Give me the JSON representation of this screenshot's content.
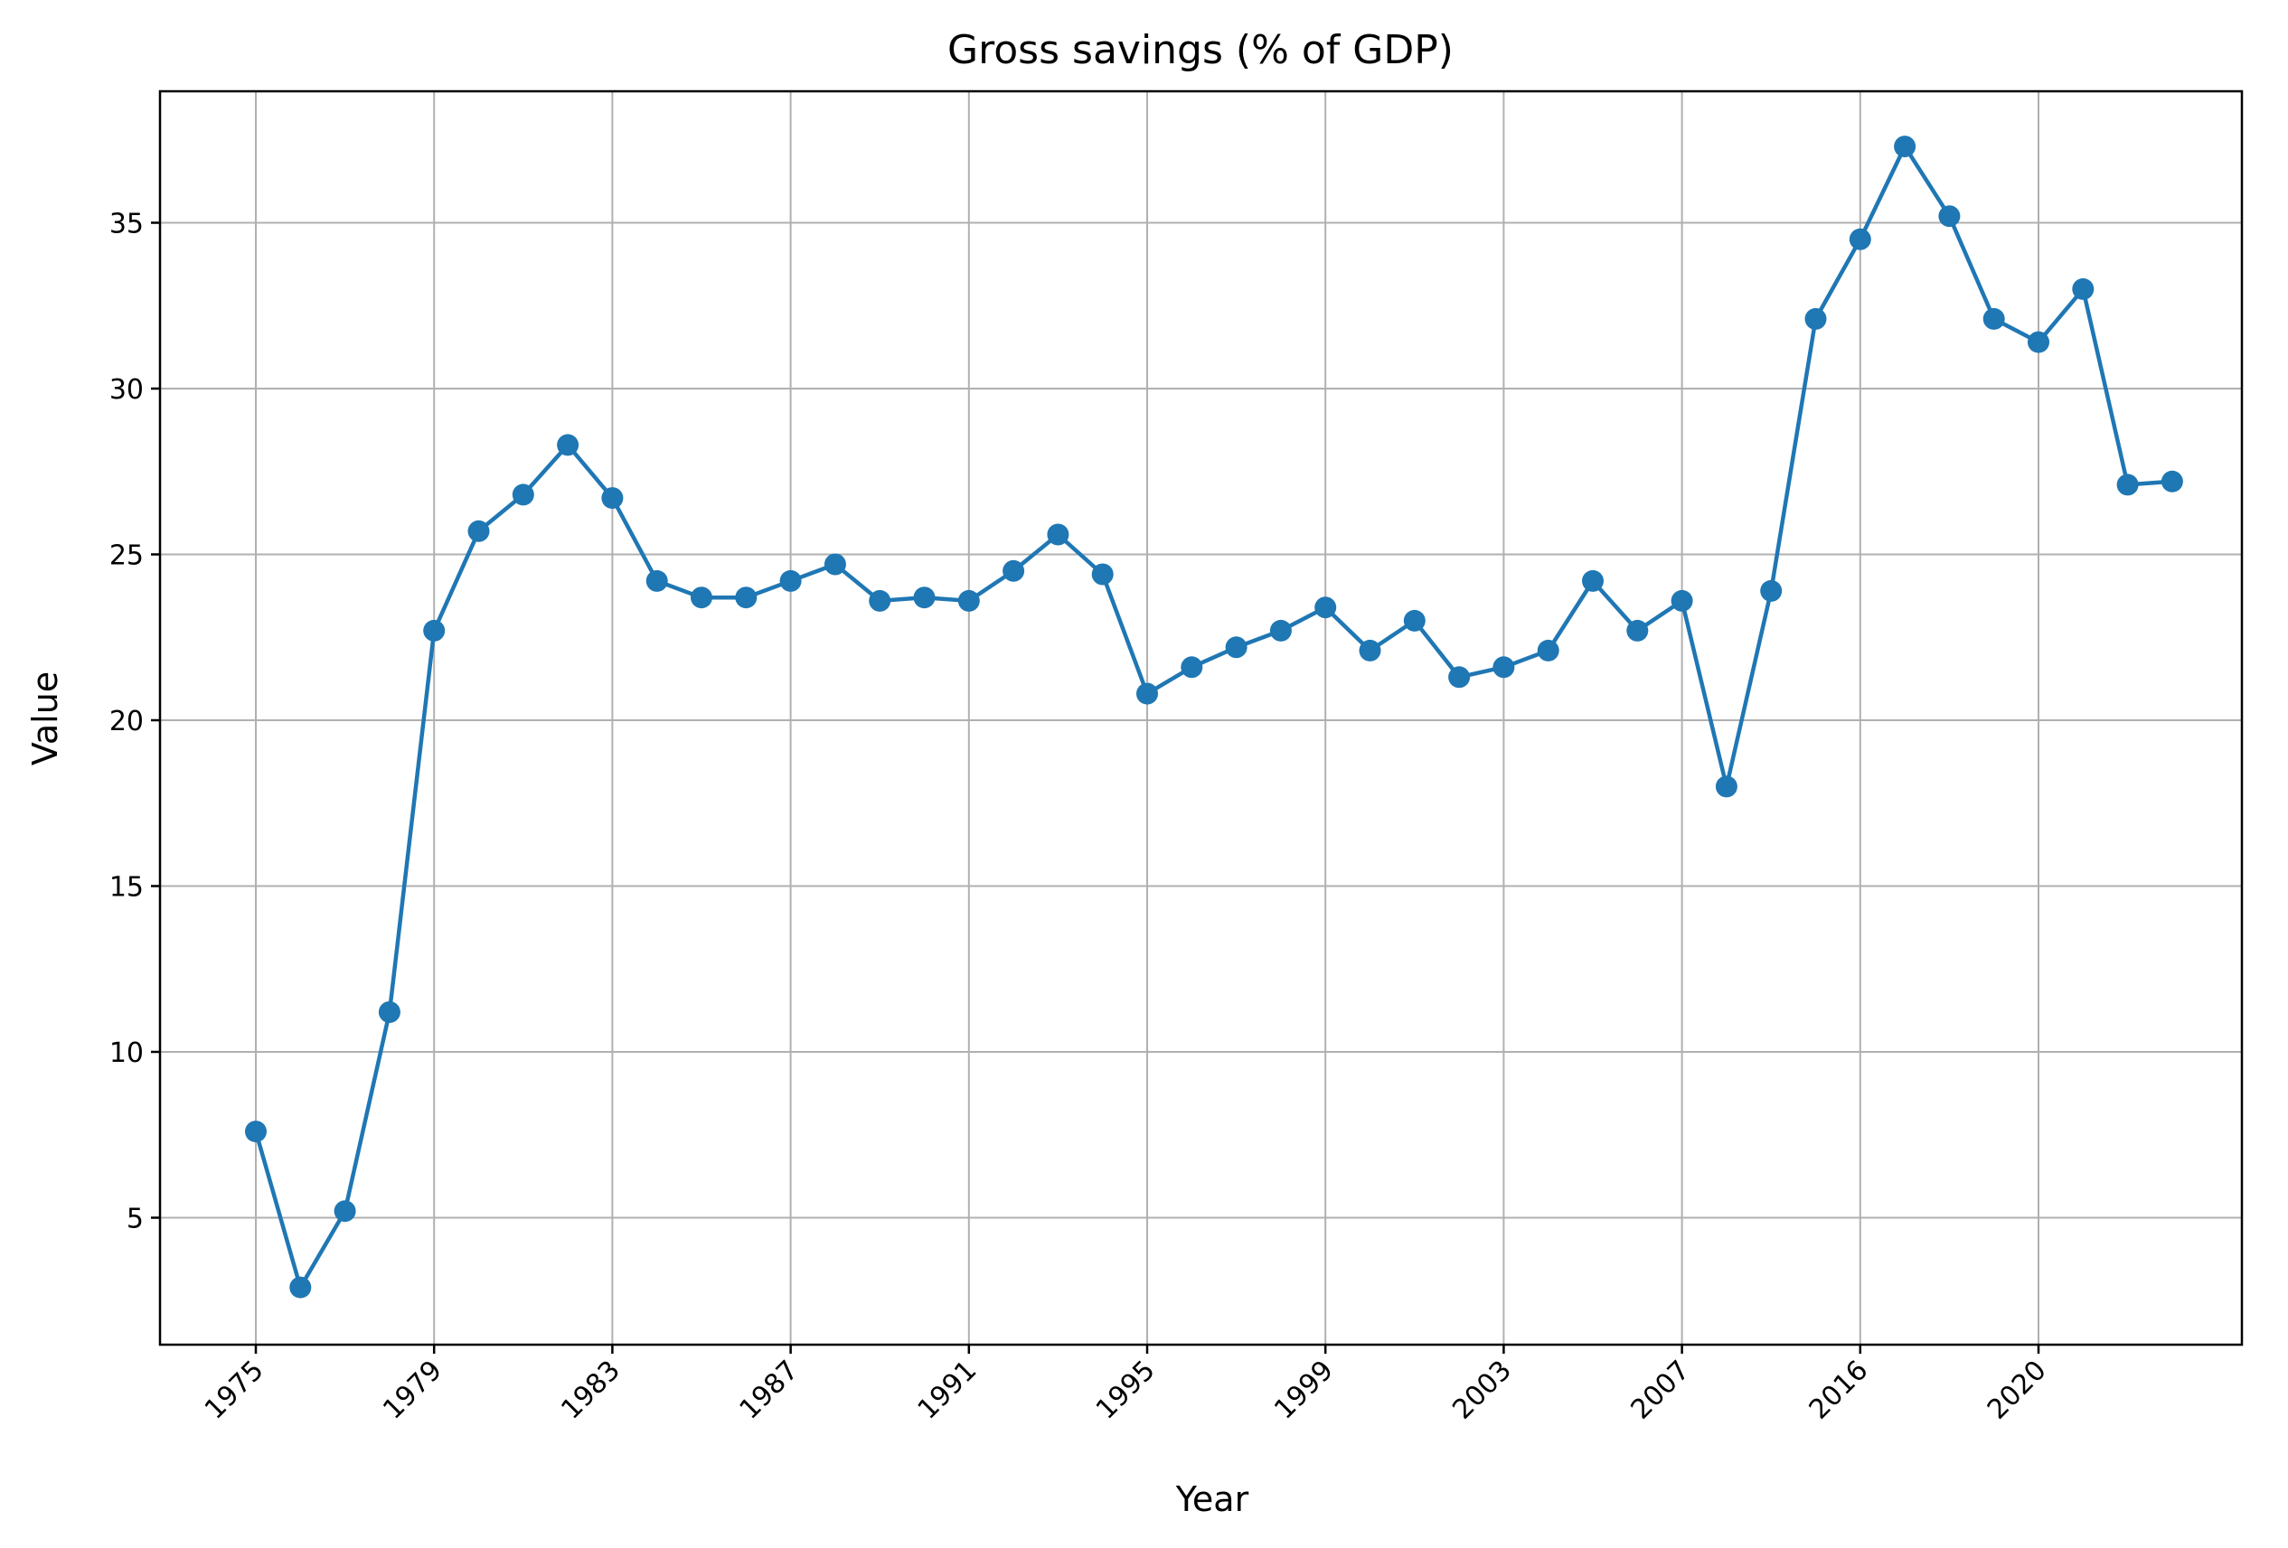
{
  "chart_data": {
    "type": "line",
    "title": "Gross savings (% of GDP)",
    "xlabel": "Year",
    "ylabel": "Value",
    "ylim": [
      1,
      39
    ],
    "grid": true,
    "x_tick_labels": [
      "1975",
      "1979",
      "1983",
      "1987",
      "1991",
      "1995",
      "1999",
      "2003",
      "2007",
      "2016",
      "2020"
    ],
    "y_ticks": [
      5,
      10,
      15,
      20,
      25,
      30,
      35
    ],
    "x": [
      "1975",
      "1976",
      "1977",
      "1978",
      "1979",
      "1980",
      "1981",
      "1982",
      "1983",
      "1984",
      "1985",
      "1986",
      "1987",
      "1988",
      "1989",
      "1990",
      "1991",
      "1992",
      "1993",
      "1994",
      "1995",
      "1996",
      "1997",
      "1998",
      "1999",
      "2000",
      "2001",
      "2002",
      "2003",
      "2004",
      "2005",
      "2006",
      "2007",
      "2008",
      "2009",
      "2015",
      "2016",
      "2017",
      "2018",
      "2019",
      "2020",
      "2021",
      "2022",
      "2023"
    ],
    "series": [
      {
        "color": "#1f77b4",
        "values": [
          7.6,
          2.9,
          5.2,
          11.2,
          22.7,
          25.7,
          26.8,
          28.3,
          26.7,
          24.2,
          23.7,
          23.7,
          24.2,
          24.7,
          23.6,
          23.7,
          23.6,
          24.5,
          25.6,
          24.4,
          20.8,
          21.6,
          22.2,
          22.7,
          23.4,
          22.1,
          23.0,
          21.3,
          21.6,
          22.1,
          24.2,
          22.7,
          23.6,
          18.0,
          23.9,
          32.1,
          34.5,
          37.3,
          35.2,
          32.1,
          31.4,
          33.0,
          27.1,
          27.2
        ]
      }
    ]
  }
}
